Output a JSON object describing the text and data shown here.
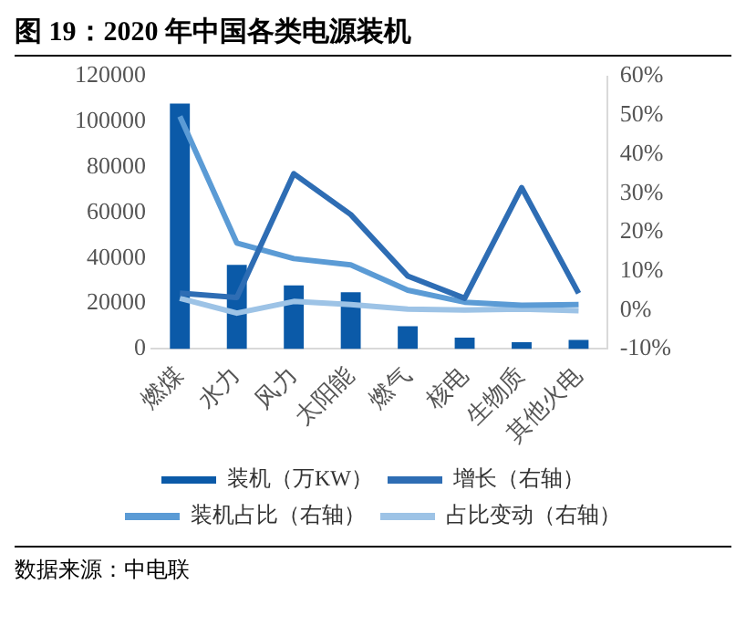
{
  "chart_data": {
    "type": "bar",
    "title": "图 19：2020 年中国各类电源装机",
    "categories": [
      "燃煤",
      "水力",
      "风力",
      "太阳能",
      "燃气",
      "核电",
      "生物质",
      "其他火电"
    ],
    "series": [
      {
        "name": "装机（万KW）",
        "color": "#0b5aa8",
        "values": [
          108000,
          37000,
          28000,
          25000,
          10000,
          5000,
          3000,
          4000
        ]
      },
      {
        "name": "增长（右轴）",
        "type": "line",
        "axis": "y2",
        "color": "#2e6db4",
        "values": [
          4.3,
          3.2,
          35,
          24.5,
          8.7,
          3,
          31.4,
          4.3
        ]
      },
      {
        "name": "装机占比（右轴）",
        "type": "line",
        "axis": "y2",
        "color": "#5b9bd5",
        "values": [
          49.7,
          17.2,
          13.2,
          11.6,
          5.1,
          2,
          1.2,
          1.4
        ]
      },
      {
        "name": "占比变动（右轴）",
        "type": "line",
        "axis": "y2",
        "color": "#9dc3e6",
        "values": [
          3,
          -0.8,
          2.2,
          1.4,
          0.2,
          0,
          0.2,
          -0.2
        ]
      }
    ],
    "ylim": [
      0,
      120000
    ],
    "yticks": [
      0,
      20000,
      40000,
      60000,
      80000,
      100000,
      120000
    ],
    "y2lim": [
      -10,
      60
    ],
    "y2ticks": [
      {
        "value": -10,
        "label": "-10%"
      },
      {
        "value": 0,
        "label": "0%"
      },
      {
        "value": 10,
        "label": "10%"
      },
      {
        "value": 20,
        "label": "20%"
      },
      {
        "value": 30,
        "label": "30%"
      },
      {
        "value": 40,
        "label": "40%"
      },
      {
        "value": 50,
        "label": "50%"
      },
      {
        "value": 60,
        "label": "60%"
      }
    ],
    "grid": false,
    "legend": "bottom",
    "marker": "none",
    "annotations": [
      "数据来源：中电联"
    ]
  }
}
